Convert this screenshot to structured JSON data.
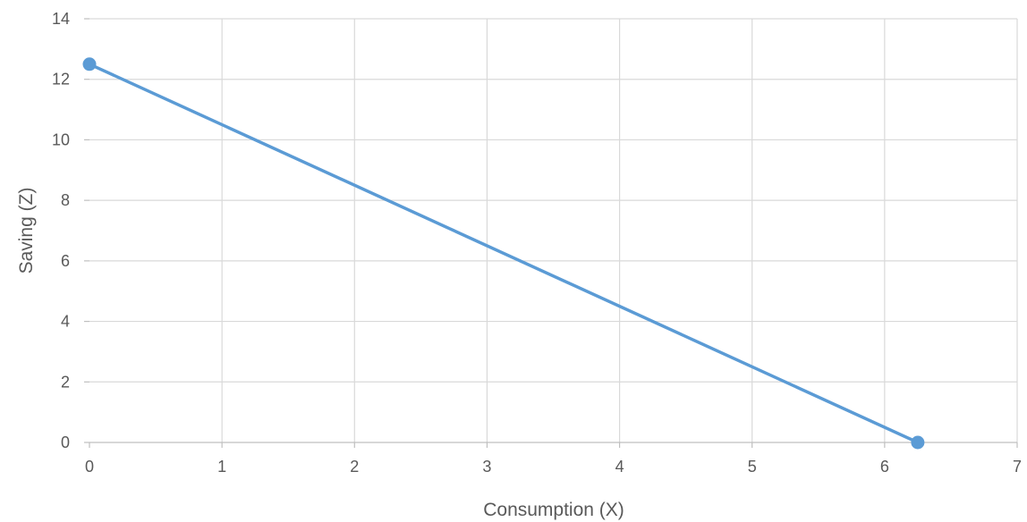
{
  "chart_data": {
    "type": "line",
    "xlabel": "Consumption (X)",
    "ylabel": "Saving (Z)",
    "xlim": [
      0,
      7
    ],
    "ylim": [
      0,
      14
    ],
    "x_ticks": [
      "0",
      "1",
      "2",
      "3",
      "4",
      "5",
      "6",
      "7"
    ],
    "y_ticks": [
      "0",
      "2",
      "4",
      "6",
      "8",
      "10",
      "12",
      "14"
    ],
    "grid": true,
    "legend": "none",
    "series": [
      {
        "color": "#5b9bd5",
        "points": [
          {
            "x": 0,
            "y": 12.5
          },
          {
            "x": 6.25,
            "y": 0
          }
        ]
      }
    ]
  }
}
